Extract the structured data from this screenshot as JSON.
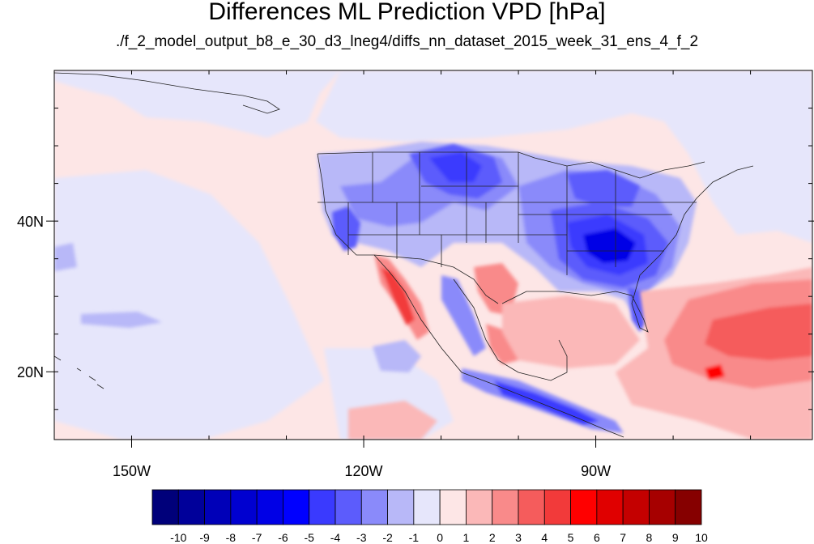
{
  "title": "Differences ML Prediction VPD [hPa]",
  "subtitle": "./f_2_model_output_b8_e_30_d3_lneg4/diffs_nn_dataset_2015_week_31_ens_4_f_2",
  "map": {
    "lon_range": [
      -160,
      -62
    ],
    "lat_range": [
      11,
      60
    ],
    "x_ticks": [
      {
        "lon": -150,
        "label": "150W"
      },
      {
        "lon": -120,
        "label": "120W"
      },
      {
        "lon": -90,
        "label": "90W"
      }
    ],
    "y_ticks": [
      {
        "lat": 40,
        "label": "40N"
      },
      {
        "lat": 20,
        "label": "20N"
      }
    ]
  },
  "colorbar": {
    "labels": [
      "-10",
      "-9",
      "-8",
      "-7",
      "-6",
      "-5",
      "-4",
      "-3",
      "-2",
      "-1",
      "0",
      "1",
      "2",
      "3",
      "4",
      "5",
      "6",
      "7",
      "8",
      "9",
      "10"
    ],
    "colors": [
      "#00007a",
      "#00009a",
      "#0000b8",
      "#0000d0",
      "#0000e6",
      "#0000ff",
      "#3a3afe",
      "#5c5cfc",
      "#8a8afa",
      "#b8b8f8",
      "#e6e6fb",
      "#fde6e6",
      "#fbb8b8",
      "#f98a8a",
      "#f55c5c",
      "#f23a3a",
      "#ff0000",
      "#e00000",
      "#c40000",
      "#a60000",
      "#860000"
    ]
  }
}
